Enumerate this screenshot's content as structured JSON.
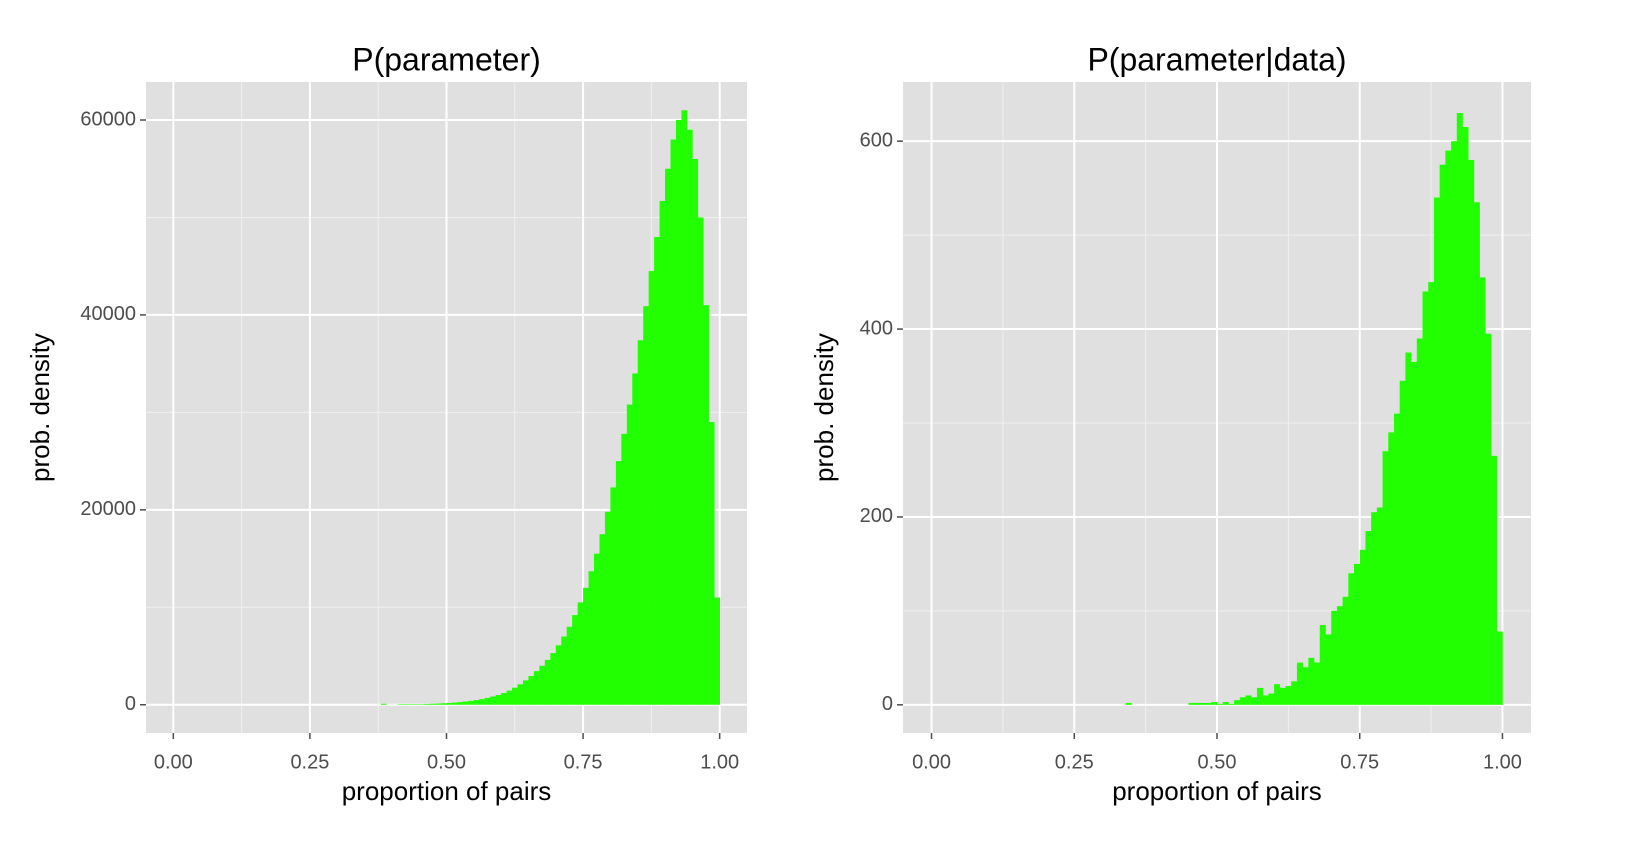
{
  "chart_data": [
    {
      "type": "histogram",
      "title": "P(parameter)",
      "xlabel": "proportion of pairs",
      "ylabel": "prob. density",
      "color": "#22ff00",
      "bins": [
        0.38,
        0.39,
        0.4,
        0.41,
        0.42,
        0.43,
        0.44,
        0.45,
        0.46,
        0.47,
        0.48,
        0.49,
        0.5,
        0.51,
        0.52,
        0.53,
        0.54,
        0.55,
        0.56,
        0.57,
        0.58,
        0.59,
        0.6,
        0.61,
        0.62,
        0.63,
        0.64,
        0.65,
        0.66,
        0.67,
        0.68,
        0.69,
        0.7,
        0.71,
        0.72,
        0.73,
        0.74,
        0.75,
        0.76,
        0.77,
        0.78,
        0.79,
        0.8,
        0.81,
        0.82,
        0.83,
        0.84,
        0.85,
        0.86,
        0.87,
        0.88,
        0.89,
        0.9,
        0.91,
        0.92,
        0.93,
        0.94,
        0.95,
        0.96,
        0.97,
        0.98,
        0.99,
        1.0
      ],
      "counts": [
        100,
        0,
        0,
        50,
        50,
        50,
        50,
        50,
        80,
        100,
        120,
        150,
        180,
        220,
        270,
        330,
        400,
        480,
        580,
        700,
        850,
        1000,
        1200,
        1450,
        1750,
        2100,
        2500,
        2950,
        3450,
        4000,
        4600,
        5300,
        6100,
        7000,
        8000,
        9200,
        10500,
        12000,
        13700,
        15500,
        17500,
        19800,
        22300,
        25000,
        27800,
        30800,
        34000,
        37400,
        40900,
        44500,
        48000,
        51700,
        55000,
        58000,
        60000,
        61000,
        59000,
        56000,
        50000,
        41000,
        29000,
        11000
      ],
      "xlim": [
        -0.05,
        1.05
      ],
      "ylim": [
        -2900,
        63900
      ],
      "xticks": [
        {
          "value": 0,
          "label": "0.00"
        },
        {
          "value": 0.25,
          "label": "0.25"
        },
        {
          "value": 0.5,
          "label": "0.50"
        },
        {
          "value": 0.75,
          "label": "0.75"
        },
        {
          "value": 1,
          "label": "1.00"
        }
      ],
      "yticks": [
        0,
        20000,
        40000,
        60000
      ],
      "grid": true
    },
    {
      "type": "histogram",
      "title": "P(parameter|data)",
      "xlabel": "proportion of pairs",
      "ylabel": "prob. density",
      "color": "#22ff00",
      "bins": [
        0.34,
        0.35,
        0.36,
        0.37,
        0.38,
        0.39,
        0.4,
        0.41,
        0.42,
        0.43,
        0.44,
        0.45,
        0.46,
        0.47,
        0.48,
        0.49,
        0.5,
        0.51,
        0.52,
        0.53,
        0.54,
        0.55,
        0.56,
        0.57,
        0.58,
        0.59,
        0.6,
        0.61,
        0.62,
        0.63,
        0.64,
        0.65,
        0.66,
        0.67,
        0.68,
        0.69,
        0.7,
        0.71,
        0.72,
        0.73,
        0.74,
        0.75,
        0.76,
        0.77,
        0.78,
        0.79,
        0.8,
        0.81,
        0.82,
        0.83,
        0.84,
        0.85,
        0.86,
        0.87,
        0.88,
        0.89,
        0.9,
        0.91,
        0.92,
        0.93,
        0.94,
        0.95,
        0.96,
        0.97,
        0.98,
        0.99,
        1.0
      ],
      "counts": [
        2,
        0,
        0,
        0,
        0,
        0,
        0,
        0,
        0,
        0,
        0,
        2,
        2,
        2,
        2,
        3,
        1,
        3,
        1,
        5,
        8,
        10,
        8,
        18,
        10,
        12,
        22,
        18,
        20,
        25,
        45,
        40,
        50,
        45,
        85,
        75,
        100,
        105,
        115,
        140,
        150,
        165,
        185,
        205,
        210,
        270,
        290,
        310,
        345,
        375,
        365,
        390,
        440,
        450,
        540,
        575,
        590,
        600,
        630,
        615,
        580,
        535,
        455,
        395,
        265,
        78
      ],
      "xlim": [
        -0.05,
        1.05
      ],
      "ylim": [
        -30,
        663
      ],
      "xticks": [
        {
          "value": 0,
          "label": "0.00"
        },
        {
          "value": 0.25,
          "label": "0.25"
        },
        {
          "value": 0.5,
          "label": "0.50"
        },
        {
          "value": 0.75,
          "label": "0.75"
        },
        {
          "value": 1,
          "label": "1.00"
        }
      ],
      "yticks": [
        0,
        200,
        400,
        600
      ],
      "grid": true
    }
  ]
}
